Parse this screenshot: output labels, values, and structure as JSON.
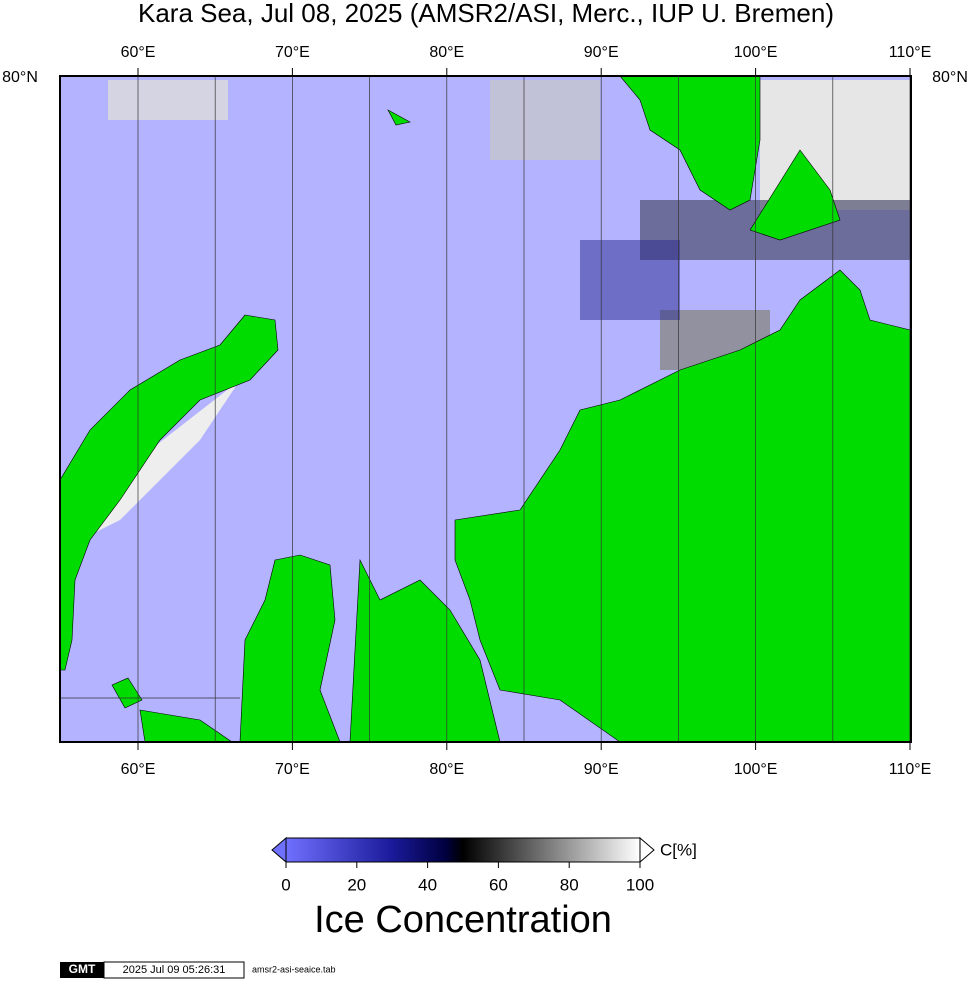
{
  "title": "Kara Sea, Jul 08, 2025 (AMSR2/ASI, Merc., IUP U. Bremen)",
  "map": {
    "lon_labels": [
      "60°E",
      "70°E",
      "80°E",
      "90°E",
      "100°E",
      "110°E"
    ],
    "lat_label": "80°N"
  },
  "colorbar": {
    "range": [
      0,
      100
    ],
    "ticks": [
      0,
      20,
      40,
      60,
      80,
      100
    ],
    "unit": "C[%]",
    "title": "Ice Concentration"
  },
  "footer": {
    "logo": "GMT",
    "timestamp": "2025 Jul 09 05:26:31",
    "file": "amsr2-asi-seaice.tab"
  }
}
